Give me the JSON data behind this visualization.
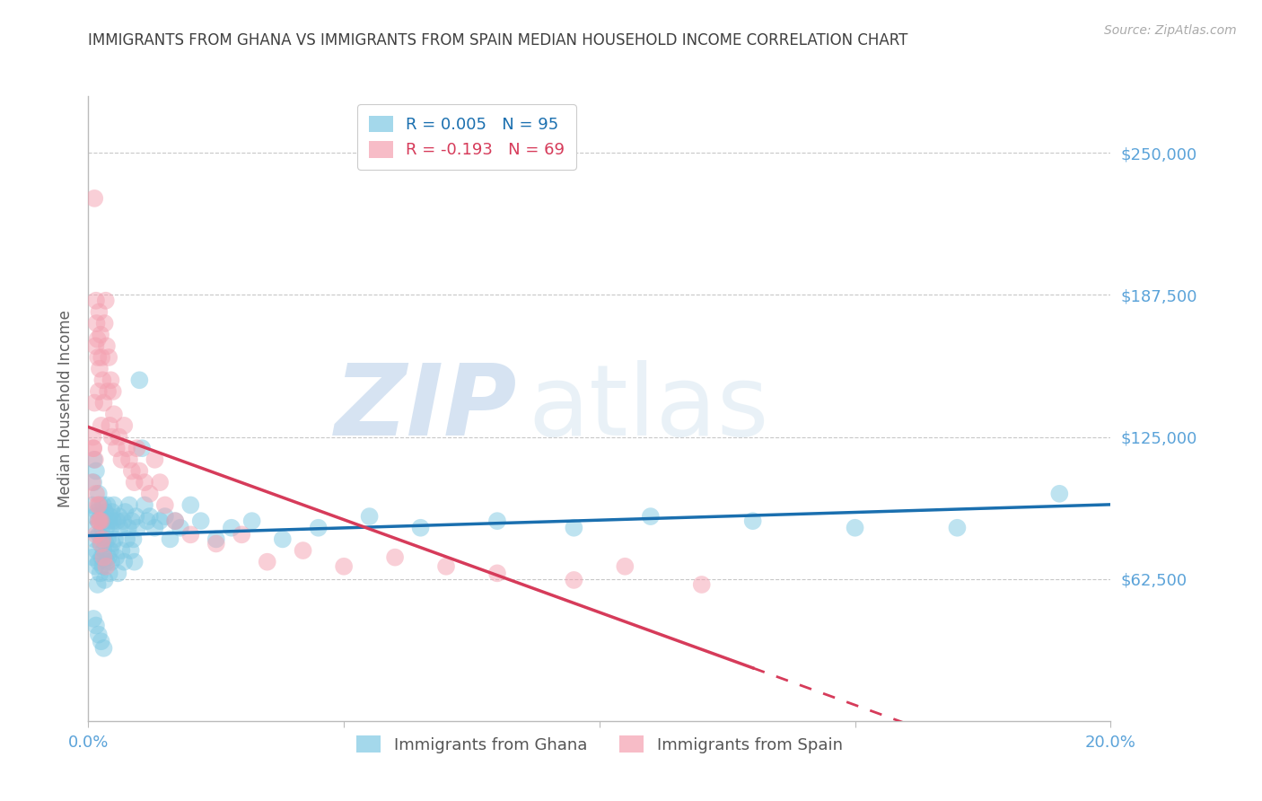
{
  "title": "IMMIGRANTS FROM GHANA VS IMMIGRANTS FROM SPAIN MEDIAN HOUSEHOLD INCOME CORRELATION CHART",
  "source": "Source: ZipAtlas.com",
  "ylabel": "Median Household Income",
  "xlim": [
    0.0,
    0.2
  ],
  "ylim": [
    0,
    275000
  ],
  "yticks": [
    0,
    62500,
    125000,
    187500,
    250000
  ],
  "ytick_labels": [
    "",
    "$62,500",
    "$125,000",
    "$187,500",
    "$250,000"
  ],
  "xticks": [
    0.0,
    0.05,
    0.1,
    0.15,
    0.2
  ],
  "xtick_labels": [
    "0.0%",
    "",
    "",
    "",
    "20.0%"
  ],
  "ghana_color": "#7ec8e3",
  "spain_color": "#f4a0b0",
  "ghana_line_color": "#1a6faf",
  "spain_line_color": "#d63b5a",
  "ghana_R": 0.005,
  "ghana_N": 95,
  "spain_R": -0.193,
  "spain_N": 69,
  "watermark_zip": "ZIP",
  "watermark_atlas": "atlas",
  "background_color": "#ffffff",
  "grid_color": "#c8c8c8",
  "title_color": "#404040",
  "axis_label_color": "#606060",
  "ytick_color": "#5ba3d9",
  "xtick_color": "#5ba3d9",
  "ghana_x": [
    0.0008,
    0.0009,
    0.001,
    0.0011,
    0.0012,
    0.0013,
    0.0014,
    0.0015,
    0.0015,
    0.0016,
    0.0017,
    0.0018,
    0.0019,
    0.002,
    0.002,
    0.0021,
    0.0022,
    0.0023,
    0.0024,
    0.0025,
    0.0026,
    0.0027,
    0.0028,
    0.0029,
    0.003,
    0.0031,
    0.0032,
    0.0033,
    0.0034,
    0.0035,
    0.0036,
    0.0037,
    0.0038,
    0.0039,
    0.004,
    0.0041,
    0.0042,
    0.0043,
    0.0044,
    0.0045,
    0.0046,
    0.0047,
    0.0048,
    0.005,
    0.0052,
    0.0054,
    0.0056,
    0.0058,
    0.006,
    0.0062,
    0.0065,
    0.0068,
    0.007,
    0.0072,
    0.0075,
    0.0078,
    0.008,
    0.0083,
    0.0085,
    0.0088,
    0.009,
    0.0093,
    0.0096,
    0.01,
    0.0105,
    0.011,
    0.0115,
    0.012,
    0.013,
    0.014,
    0.015,
    0.016,
    0.017,
    0.018,
    0.02,
    0.022,
    0.025,
    0.028,
    0.032,
    0.038,
    0.045,
    0.055,
    0.065,
    0.08,
    0.095,
    0.11,
    0.13,
    0.15,
    0.17,
    0.19,
    0.001,
    0.0015,
    0.002,
    0.0025,
    0.003
  ],
  "ghana_y": [
    95000,
    72000,
    105000,
    115000,
    80000,
    90000,
    68000,
    85000,
    110000,
    75000,
    92000,
    60000,
    88000,
    70000,
    100000,
    82000,
    95000,
    65000,
    78000,
    90000,
    72000,
    85000,
    68000,
    95000,
    75000,
    88000,
    62000,
    92000,
    78000,
    85000,
    70000,
    95000,
    80000,
    72000,
    88000,
    65000,
    90000,
    75000,
    85000,
    70000,
    92000,
    78000,
    88000,
    95000,
    80000,
    72000,
    88000,
    65000,
    90000,
    85000,
    75000,
    88000,
    70000,
    92000,
    80000,
    85000,
    95000,
    75000,
    88000,
    80000,
    70000,
    90000,
    85000,
    150000,
    120000,
    95000,
    88000,
    90000,
    85000,
    88000,
    90000,
    80000,
    88000,
    85000,
    95000,
    88000,
    80000,
    85000,
    88000,
    80000,
    85000,
    90000,
    85000,
    88000,
    85000,
    90000,
    88000,
    85000,
    85000,
    100000,
    45000,
    42000,
    38000,
    35000,
    32000
  ],
  "spain_x": [
    0.0008,
    0.0009,
    0.001,
    0.0012,
    0.0013,
    0.0014,
    0.0015,
    0.0016,
    0.0018,
    0.0019,
    0.002,
    0.0021,
    0.0022,
    0.0024,
    0.0025,
    0.0026,
    0.0028,
    0.003,
    0.0032,
    0.0034,
    0.0036,
    0.0038,
    0.004,
    0.0042,
    0.0044,
    0.0046,
    0.0048,
    0.005,
    0.0055,
    0.006,
    0.0065,
    0.007,
    0.0075,
    0.008,
    0.0085,
    0.009,
    0.0095,
    0.01,
    0.011,
    0.012,
    0.013,
    0.014,
    0.015,
    0.017,
    0.02,
    0.025,
    0.03,
    0.035,
    0.042,
    0.05,
    0.06,
    0.07,
    0.08,
    0.095,
    0.105,
    0.12,
    0.0015,
    0.002,
    0.0025,
    0.003,
    0.0035,
    0.0018,
    0.0022,
    0.0028,
    0.0015,
    0.002,
    0.0025,
    0.0012,
    0.001
  ],
  "spain_y": [
    105000,
    125000,
    120000,
    140000,
    115000,
    165000,
    185000,
    175000,
    168000,
    160000,
    145000,
    180000,
    155000,
    170000,
    130000,
    160000,
    150000,
    140000,
    175000,
    185000,
    165000,
    145000,
    160000,
    130000,
    150000,
    125000,
    145000,
    135000,
    120000,
    125000,
    115000,
    130000,
    120000,
    115000,
    110000,
    105000,
    120000,
    110000,
    105000,
    100000,
    115000,
    105000,
    95000,
    88000,
    82000,
    78000,
    82000,
    70000,
    75000,
    68000,
    72000,
    68000,
    65000,
    62000,
    68000,
    60000,
    82000,
    88000,
    78000,
    72000,
    68000,
    95000,
    88000,
    80000,
    100000,
    95000,
    88000,
    230000,
    120000
  ]
}
